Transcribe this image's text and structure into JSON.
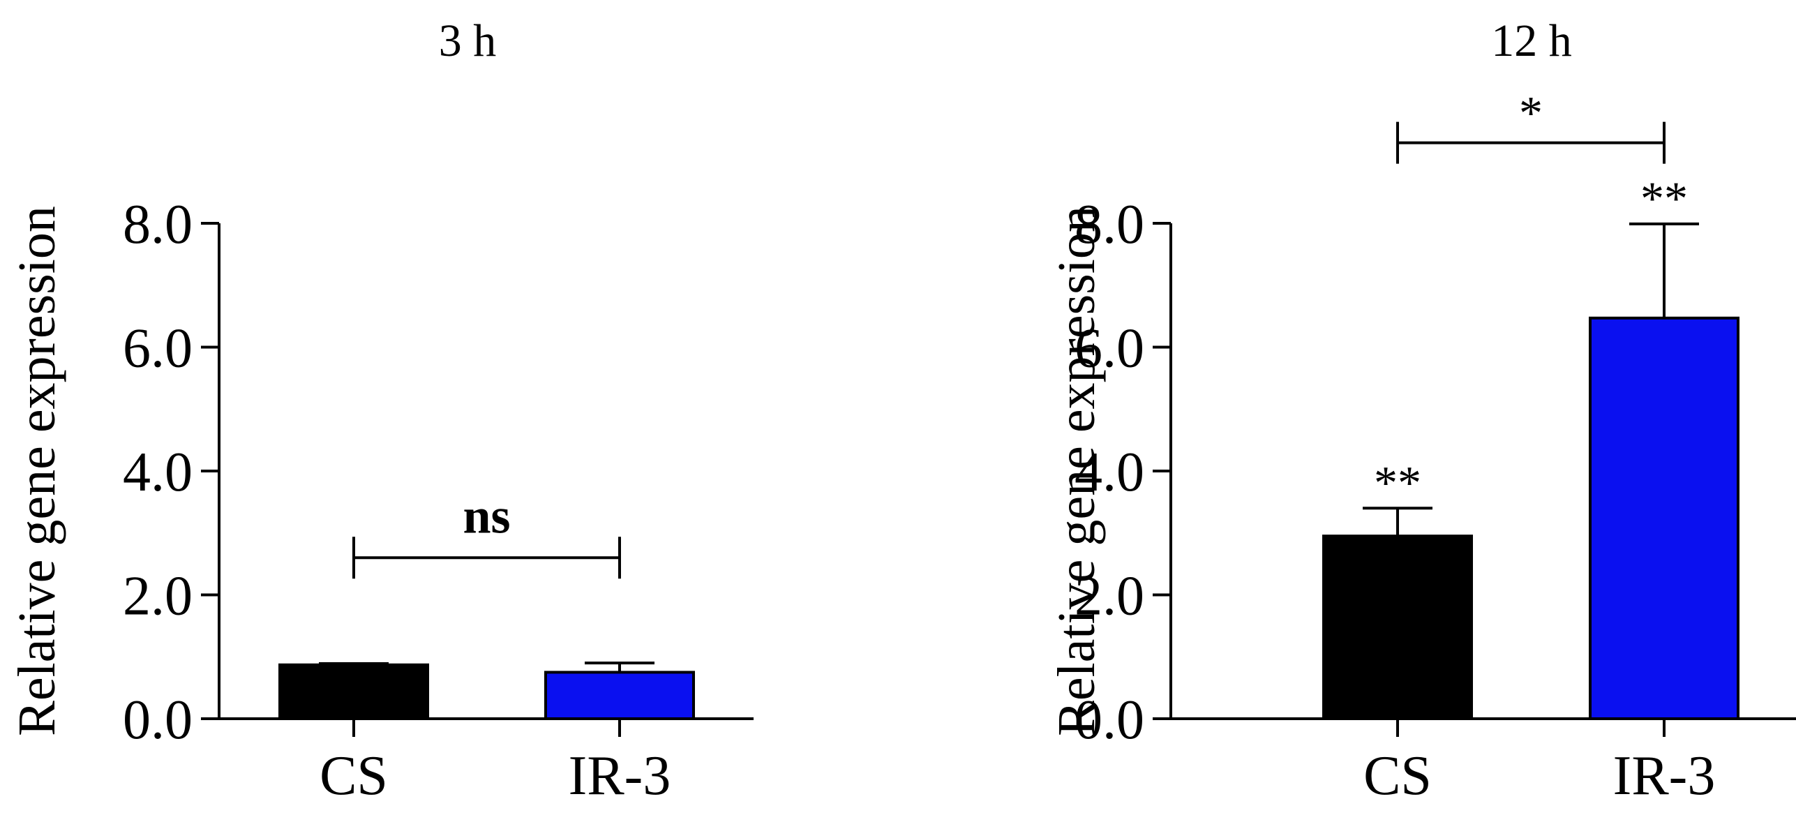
{
  "chart_data": [
    {
      "type": "bar",
      "title": "3 h",
      "ylabel": "Relative gene expression",
      "xlabel": "",
      "ylim": [
        0,
        8
      ],
      "yticks": [
        "0.0",
        "2.0",
        "4.0",
        "6.0",
        "8.0"
      ],
      "categories": [
        "CS",
        "IR-3"
      ],
      "values": [
        0.87,
        0.75
      ],
      "errors": [
        0.02,
        0.15
      ],
      "colors": [
        "#000000",
        "#0a10f0"
      ],
      "bar_annotations": [
        "",
        ""
      ],
      "comparison": {
        "from": 0,
        "to": 1,
        "label": "ns",
        "level": 2.6
      }
    },
    {
      "type": "bar",
      "title": "12 h",
      "ylabel": "Relative gene expression",
      "xlabel": "",
      "ylim": [
        0,
        8
      ],
      "yticks": [
        "0.0",
        "2.0",
        "4.0",
        "6.0",
        "8.0"
      ],
      "categories": [
        "CS",
        "IR-3"
      ],
      "values": [
        2.95,
        6.47
      ],
      "errors": [
        0.45,
        1.52
      ],
      "colors": [
        "#000000",
        "#0a10f0"
      ],
      "bar_annotations": [
        "**",
        "**"
      ],
      "comparison": {
        "from": 0,
        "to": 1,
        "label": "*",
        "level": 9.3
      }
    }
  ]
}
